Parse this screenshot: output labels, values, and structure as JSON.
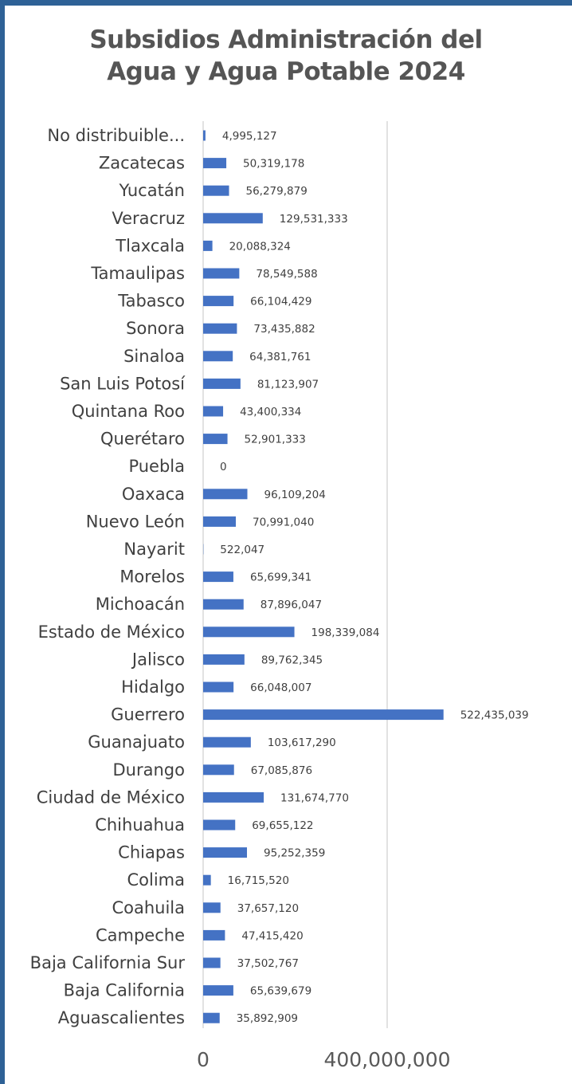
{
  "colors": {
    "bar": "#4472c4",
    "frame": "#2e6196",
    "gridline": "#d9d9d9",
    "title": "#555555",
    "text": "#404040"
  },
  "chart_data": {
    "type": "bar",
    "orientation": "horizontal",
    "title_lines": [
      "Subsidios Administración del",
      "Agua y Agua Potable 2024"
    ],
    "xlabel": "",
    "ylabel": "",
    "xlim": [
      0,
      700000000
    ],
    "xticks": [
      0,
      400000000
    ],
    "xtick_labels": [
      "0",
      "400,000,000"
    ],
    "grid": true,
    "legend": "none",
    "categories": [
      "No distribuible...",
      "Zacatecas",
      "Yucatán",
      "Veracruz",
      "Tlaxcala",
      "Tamaulipas",
      "Tabasco",
      "Sonora",
      "Sinaloa",
      "San Luis Potosí",
      "Quintana Roo",
      "Querétaro",
      "Puebla",
      "Oaxaca",
      "Nuevo León",
      "Nayarit",
      "Morelos",
      "Michoacán",
      "Estado de México",
      "Jalisco",
      "Hidalgo",
      "Guerrero",
      "Guanajuato",
      "Durango",
      "Ciudad de México",
      "Chihuahua",
      "Chiapas",
      "Colima",
      "Coahuila",
      "Campeche",
      "Baja California Sur",
      "Baja California",
      "Aguascalientes"
    ],
    "values": [
      4995127,
      50319178,
      56279879,
      129531333,
      20088324,
      78549588,
      66104429,
      73435882,
      64381761,
      81123907,
      43400334,
      52901333,
      0,
      96109204,
      70991040,
      522047,
      65699341,
      87896047,
      198339084,
      89762345,
      66048007,
      522435039,
      103617290,
      67085876,
      131674770,
      69655122,
      95252359,
      16715520,
      37657120,
      47415420,
      37502767,
      65639679,
      35892909
    ],
    "data_labels": [
      "4,995,127",
      "50,319,178",
      "56,279,879",
      "129,531,333",
      "20,088,324",
      "78,549,588",
      "66,104,429",
      "73,435,882",
      "64,381,761",
      "81,123,907",
      "43,400,334",
      "52,901,333",
      "0",
      "96,109,204",
      "70,991,040",
      "522,047",
      "65,699,341",
      "87,896,047",
      "198,339,084",
      "89,762,345",
      "66,048,007",
      "522,435,039",
      "103,617,290",
      "67,085,876",
      "131,674,770",
      "69,655,122",
      "95,252,359",
      "16,715,520",
      "37,657,120",
      "47,415,420",
      "37,502,767",
      "65,639,679",
      "35,892,909"
    ]
  }
}
